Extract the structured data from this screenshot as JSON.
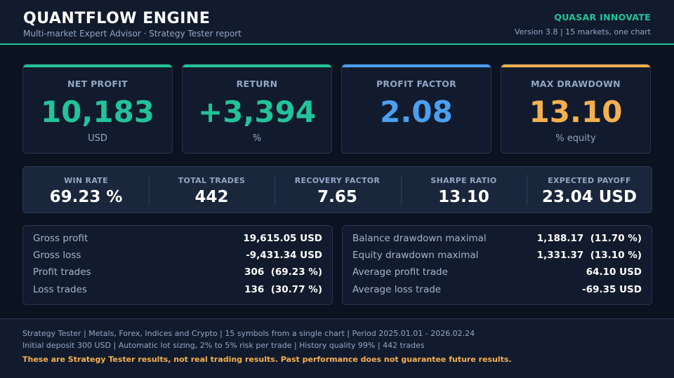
{
  "header": {
    "title": "QUANTFLOW ENGINE",
    "subtitle": "Multi-market Expert Advisor  ·  Strategy Tester report",
    "brand": "QUASAR INNOVATE",
    "version_line": "Version 3.8   |   15 markets, one chart"
  },
  "colors": {
    "teal": "#22c39a",
    "blue": "#4a9ff0",
    "orange": "#f5b04f",
    "background": "#0b1220",
    "panel": "#121b2d"
  },
  "kpis": [
    {
      "label": "NET PROFIT",
      "value": "10,183",
      "unit": "USD",
      "color": "#22c39a"
    },
    {
      "label": "RETURN",
      "value": "+3,394",
      "unit": "%",
      "color": "#22c39a"
    },
    {
      "label": "PROFIT FACTOR",
      "value": "2.08",
      "unit": "",
      "color": "#4a9ff0"
    },
    {
      "label": "MAX DRAWDOWN",
      "value": "13.10",
      "unit": "% equity",
      "color": "#f5b04f"
    }
  ],
  "stats": [
    {
      "label": "WIN RATE",
      "value": "69.23 %"
    },
    {
      "label": "TOTAL TRADES",
      "value": "442"
    },
    {
      "label": "RECOVERY FACTOR",
      "value": "7.65"
    },
    {
      "label": "SHARPE RATIO",
      "value": "13.10"
    },
    {
      "label": "EXPECTED PAYOFF",
      "value": "23.04 USD"
    }
  ],
  "left_details": [
    {
      "label": "Gross profit",
      "value": "19,615.05 USD"
    },
    {
      "label": "Gross loss",
      "value": "-9,431.34 USD"
    },
    {
      "label": "Profit trades",
      "value": "306  (69.23 %)"
    },
    {
      "label": "Loss trades",
      "value": "136  (30.77 %)"
    }
  ],
  "right_details": [
    {
      "label": "Balance drawdown maximal",
      "value": "1,188.17  (11.70 %)"
    },
    {
      "label": "Equity drawdown maximal",
      "value": "1,331.37  (13.10 %)"
    },
    {
      "label": "Average profit trade",
      "value": "64.10 USD"
    },
    {
      "label": "Average loss trade",
      "value": "-69.35 USD"
    }
  ],
  "footer": {
    "line1": "Strategy Tester  |  Metals, Forex, Indices and Crypto  |  15 symbols from a single chart  |  Period 2025.01.01 - 2026.02.24",
    "line2": "Initial deposit 300 USD  |  Automatic lot sizing, 2% to 5% risk per trade  |  History quality 99%  |  442 trades",
    "warning": "These are Strategy Tester results, not real trading results. Past performance does not guarantee future results."
  }
}
